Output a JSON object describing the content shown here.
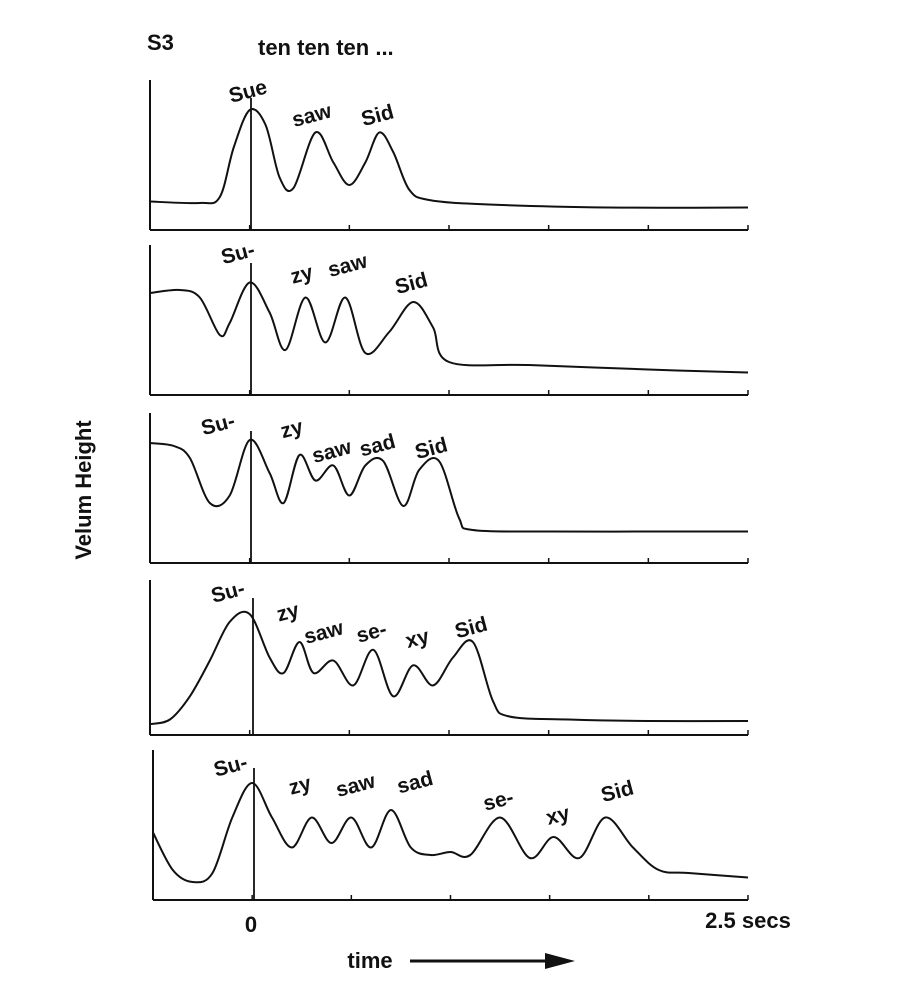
{
  "header": {
    "speaker": "S3",
    "carrier": "ten ten ten ..."
  },
  "axes": {
    "ylabel": "Velum Height",
    "xlabel": "time",
    "x_tick_zero": "0",
    "x_tick_end": "2.5 secs"
  },
  "chart_data": {
    "type": "line",
    "xlabel": "time",
    "ylabel": "Velum Height",
    "xlim": [
      -0.5,
      2.5
    ],
    "x_unit": "secs",
    "ylim": [
      0,
      1
    ],
    "grid": false,
    "legend": "none",
    "panels": [
      {
        "labels": [
          {
            "text": "Sue",
            "x": 0.0,
            "y": 0.88,
            "rot": -15
          },
          {
            "text": "saw",
            "x": 0.32,
            "y": 0.72,
            "rot": -15
          },
          {
            "text": "Sid",
            "x": 0.65,
            "y": 0.72,
            "rot": -15
          }
        ],
        "x": [
          -0.5,
          -0.25,
          -0.15,
          -0.08,
          0.0,
          0.08,
          0.15,
          0.22,
          0.33,
          0.42,
          0.5,
          0.58,
          0.65,
          0.72,
          0.8,
          0.9,
          1.2,
          1.8,
          2.5
        ],
        "y": [
          0.19,
          0.18,
          0.22,
          0.55,
          0.8,
          0.7,
          0.35,
          0.28,
          0.65,
          0.45,
          0.3,
          0.45,
          0.65,
          0.52,
          0.27,
          0.2,
          0.17,
          0.15,
          0.15
        ]
      },
      {
        "labels": [
          {
            "text": "Su-",
            "x": -0.05,
            "y": 0.9,
            "rot": -15
          },
          {
            "text": "zy",
            "x": 0.27,
            "y": 0.76,
            "rot": -15
          },
          {
            "text": "saw",
            "x": 0.5,
            "y": 0.82,
            "rot": -15
          },
          {
            "text": "Sid",
            "x": 0.82,
            "y": 0.7,
            "rot": -15
          }
        ],
        "x": [
          -0.5,
          -0.35,
          -0.25,
          -0.15,
          -0.1,
          0.0,
          0.1,
          0.18,
          0.28,
          0.38,
          0.48,
          0.58,
          0.7,
          0.82,
          0.92,
          1.0,
          1.4,
          2.0,
          2.5
        ],
        "y": [
          0.68,
          0.7,
          0.65,
          0.4,
          0.48,
          0.75,
          0.55,
          0.3,
          0.65,
          0.35,
          0.65,
          0.28,
          0.42,
          0.62,
          0.45,
          0.22,
          0.2,
          0.17,
          0.15
        ]
      },
      {
        "labels": [
          {
            "text": "Su-",
            "x": -0.15,
            "y": 0.88,
            "rot": -15
          },
          {
            "text": "zy",
            "x": 0.22,
            "y": 0.85,
            "rot": -15
          },
          {
            "text": "saw",
            "x": 0.42,
            "y": 0.7,
            "rot": -15
          },
          {
            "text": "sad",
            "x": 0.65,
            "y": 0.74,
            "rot": -15
          },
          {
            "text": "Sid",
            "x": 0.92,
            "y": 0.72,
            "rot": -15
          }
        ],
        "x": [
          -0.5,
          -0.38,
          -0.3,
          -0.2,
          -0.1,
          0.0,
          0.1,
          0.17,
          0.25,
          0.33,
          0.42,
          0.5,
          0.58,
          0.67,
          0.77,
          0.85,
          0.95,
          1.05,
          1.12,
          1.5,
          2.0,
          2.5
        ],
        "y": [
          0.8,
          0.78,
          0.7,
          0.4,
          0.45,
          0.82,
          0.6,
          0.4,
          0.72,
          0.55,
          0.65,
          0.45,
          0.65,
          0.68,
          0.38,
          0.62,
          0.68,
          0.3,
          0.22,
          0.21,
          0.21,
          0.21
        ]
      },
      {
        "labels": [
          {
            "text": "Su-",
            "x": -0.1,
            "y": 0.88,
            "rot": -15
          },
          {
            "text": "zy",
            "x": 0.2,
            "y": 0.75,
            "rot": -15
          },
          {
            "text": "saw",
            "x": 0.38,
            "y": 0.62,
            "rot": -15
          },
          {
            "text": "se-",
            "x": 0.62,
            "y": 0.62,
            "rot": -15
          },
          {
            "text": "xy",
            "x": 0.85,
            "y": 0.58,
            "rot": -15
          },
          {
            "text": "Sid",
            "x": 1.12,
            "y": 0.65,
            "rot": -15
          }
        ],
        "x": [
          -0.5,
          -0.4,
          -0.3,
          -0.2,
          -0.1,
          0.0,
          0.1,
          0.17,
          0.25,
          0.32,
          0.42,
          0.52,
          0.62,
          0.72,
          0.82,
          0.92,
          1.02,
          1.12,
          1.22,
          1.3,
          1.6,
          2.0,
          2.5
        ],
        "y": [
          0.07,
          0.1,
          0.25,
          0.48,
          0.73,
          0.78,
          0.5,
          0.4,
          0.6,
          0.4,
          0.48,
          0.32,
          0.55,
          0.25,
          0.45,
          0.32,
          0.5,
          0.6,
          0.22,
          0.12,
          0.1,
          0.09,
          0.09
        ]
      },
      {
        "labels": [
          {
            "text": "Su-",
            "x": -0.1,
            "y": 0.85,
            "rot": -15
          },
          {
            "text": "zy",
            "x": 0.25,
            "y": 0.72,
            "rot": -15
          },
          {
            "text": "saw",
            "x": 0.53,
            "y": 0.72,
            "rot": -15
          },
          {
            "text": "sad",
            "x": 0.83,
            "y": 0.74,
            "rot": -15
          },
          {
            "text": "se-",
            "x": 1.25,
            "y": 0.62,
            "rot": -15
          },
          {
            "text": "xy",
            "x": 1.55,
            "y": 0.52,
            "rot": -15
          },
          {
            "text": "Sid",
            "x": 1.85,
            "y": 0.68,
            "rot": -15
          }
        ],
        "x": [
          -0.5,
          -0.4,
          -0.3,
          -0.2,
          -0.1,
          0.0,
          0.1,
          0.2,
          0.3,
          0.4,
          0.5,
          0.6,
          0.7,
          0.8,
          0.9,
          1.0,
          1.1,
          1.25,
          1.4,
          1.52,
          1.65,
          1.78,
          1.92,
          2.05,
          2.2,
          2.5
        ],
        "y": [
          0.45,
          0.2,
          0.12,
          0.18,
          0.55,
          0.78,
          0.55,
          0.35,
          0.55,
          0.38,
          0.55,
          0.35,
          0.6,
          0.35,
          0.3,
          0.32,
          0.3,
          0.55,
          0.28,
          0.42,
          0.28,
          0.55,
          0.35,
          0.2,
          0.18,
          0.15
        ]
      }
    ]
  }
}
